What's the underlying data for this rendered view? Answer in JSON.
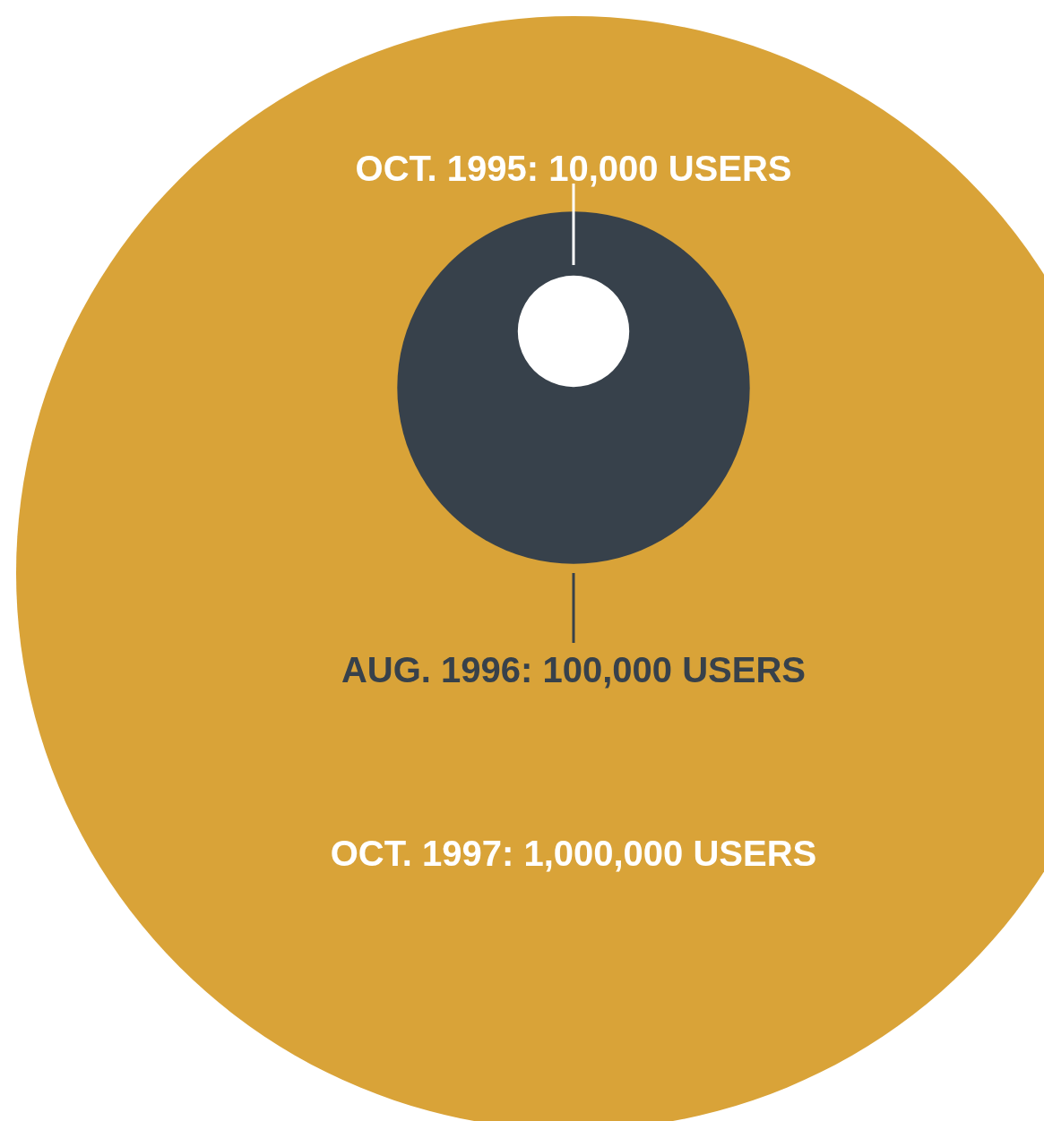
{
  "chart_data": {
    "type": "other",
    "categories": [
      null,
      null,
      null
    ],
    "values": [
      10000,
      100000,
      1000000
    ],
    "value_labels": [
      "OCT. 1995: 10,000 USERS",
      "AUG. 1996: 100,000 USERS",
      "OCT. 1997: 1,000,000 USERS"
    ],
    "colors": [
      "#ffffff",
      "#37414b",
      "#d9a338"
    ]
  }
}
